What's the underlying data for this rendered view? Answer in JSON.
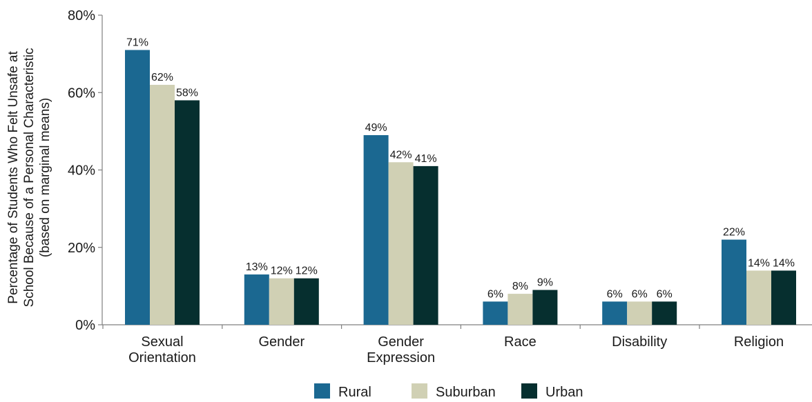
{
  "chart_data": {
    "type": "bar",
    "categories": [
      [
        "Sexual",
        "Orientation"
      ],
      [
        "Gender"
      ],
      [
        "Gender",
        "Expression"
      ],
      [
        "Race"
      ],
      [
        "Disability"
      ],
      [
        "Religion"
      ]
    ],
    "series": [
      {
        "name": "Rural",
        "color": "#1b6891",
        "values": [
          71,
          13,
          49,
          6,
          6,
          22
        ],
        "labels": [
          "71%",
          "13%",
          "49%",
          "6%",
          "6%",
          "22%"
        ]
      },
      {
        "name": "Suburban",
        "color": "#d0d0b4",
        "values": [
          62,
          12,
          42,
          8,
          6,
          14
        ],
        "labels": [
          "62%",
          "12%",
          "42%",
          "8%",
          "6%",
          "14%"
        ]
      },
      {
        "name": "Urban",
        "color": "#062f2f",
        "values": [
          58,
          12,
          41,
          9,
          6,
          14
        ],
        "labels": [
          "58%",
          "12%",
          "41%",
          "9%",
          "6%",
          "14%"
        ]
      }
    ],
    "ylabel": [
      "Percentage of Students Who Felt Unsafe at",
      "School Because of a Personal Characteristic",
      "(based on marginal means)"
    ],
    "xlabel": "",
    "ylim": [
      0,
      80
    ],
    "yticks": [
      "0%",
      "20%",
      "40%",
      "60%",
      "80%"
    ],
    "ytick_values": [
      0,
      20,
      40,
      60,
      80
    ],
    "grid": false,
    "legend_position": "bottom-center"
  }
}
